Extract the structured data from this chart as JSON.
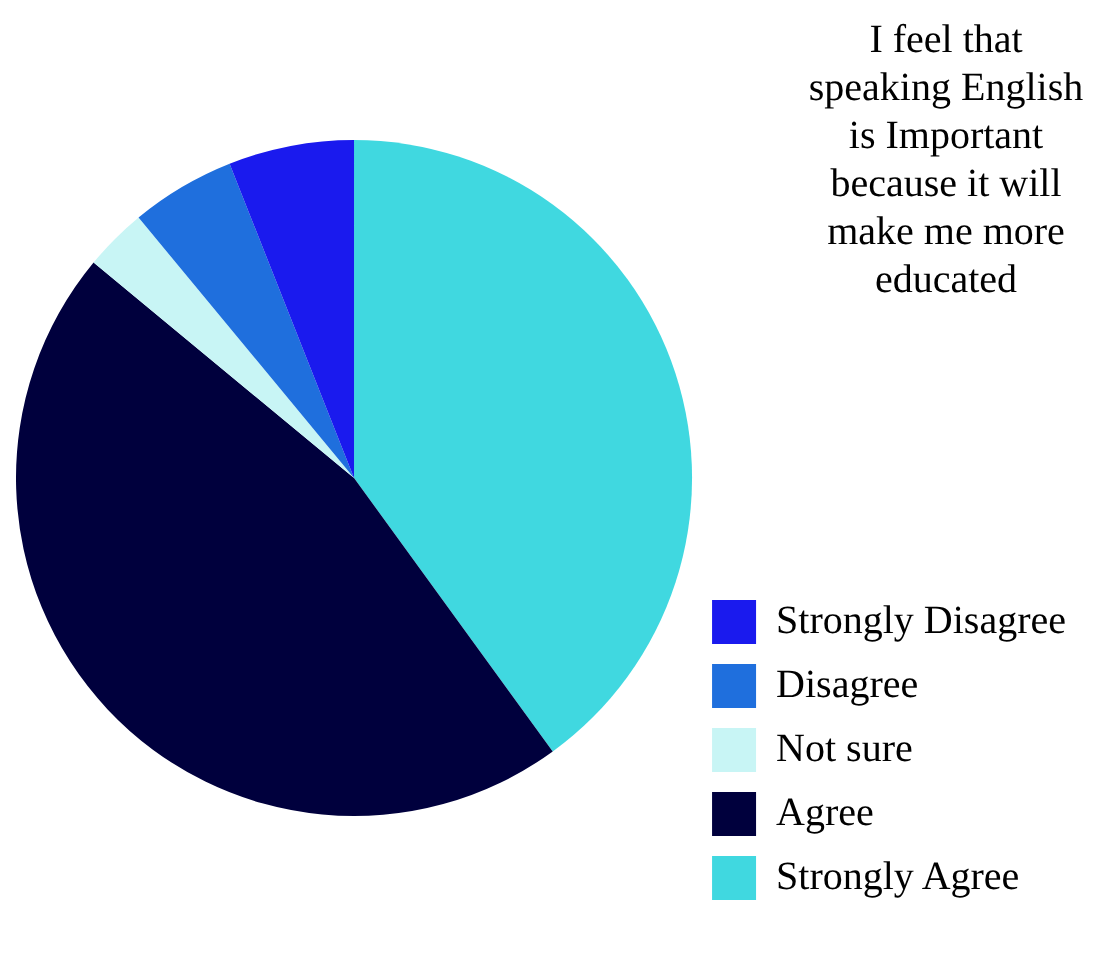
{
  "chart_data": {
    "type": "pie",
    "title": "I feel that speaking English is Important because it will make me more educated",
    "categories": [
      "Strongly Disagree",
      "Disagree",
      "Not sure",
      "Agree",
      "Strongly Agree"
    ],
    "values": [
      6,
      5,
      3,
      46,
      40
    ],
    "colors": [
      "#1a1aee",
      "#1f6fdd",
      "#c8f5f5",
      "#00003d",
      "#40d8e0"
    ],
    "legend": "bottom right"
  }
}
